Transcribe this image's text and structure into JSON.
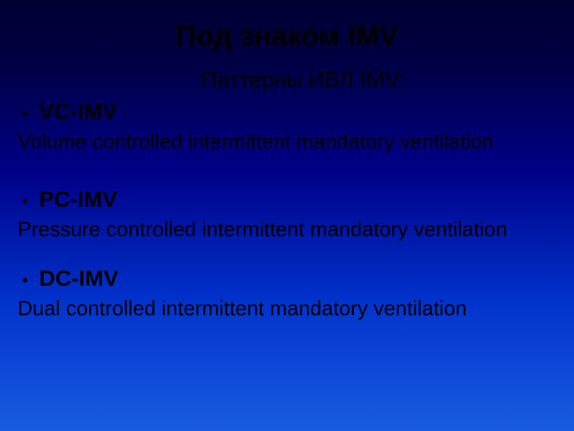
{
  "title": "Под знаком IMV",
  "subtitle": "Паттерны ИВЛ IMV:",
  "items": [
    {
      "label": "VC-IMV",
      "description": "Volume controlled intermittent mandatory ventilation"
    },
    {
      "label": "PC-IMV",
      "description": "Pressure controlled intermittent mandatory ventilation"
    },
    {
      "label": "DC-IMV",
      "description": "Dual controlled intermittent mandatory ventilation"
    }
  ],
  "colors": {
    "text": "#000000",
    "gradient_top": "#000033",
    "gradient_bottom": "#1a5ce0"
  },
  "typography": {
    "title_fontsize": 36,
    "subtitle_fontsize": 28,
    "bullet_fontsize": 28,
    "description_fontsize": 26,
    "font_family": "Arial"
  }
}
